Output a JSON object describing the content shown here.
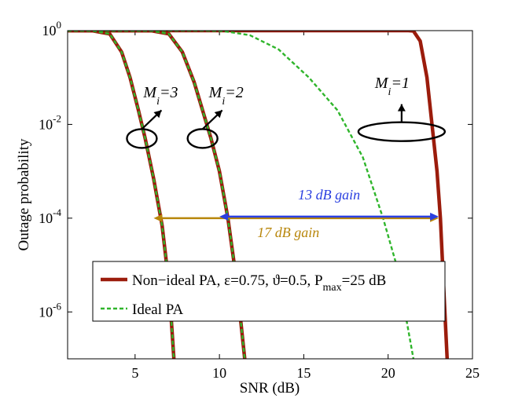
{
  "chart_data": {
    "type": "line",
    "title": "",
    "xlabel": "SNR (dB)",
    "ylabel": "Outage probability",
    "xlim": [
      1,
      25
    ],
    "ylim": [
      1e-07,
      1
    ],
    "yscale": "log",
    "xticks": [
      5,
      10,
      15,
      20,
      25
    ],
    "yticks": [
      {
        "base": "10",
        "exp": "0",
        "value": 1
      },
      {
        "base": "10",
        "exp": "-2",
        "value": 0.01
      },
      {
        "base": "10",
        "exp": "-4",
        "value": 0.0001
      },
      {
        "base": "10",
        "exp": "-6",
        "value": 1e-06
      }
    ],
    "colors": {
      "nonideal": "#9b1c0c",
      "ideal": "#2fb52b",
      "gain13": "#2a3fe0",
      "gain17": "#b8860b"
    },
    "series": [
      {
        "name": "Non-ideal PA, Mi=3",
        "group": "nonideal",
        "x": [
          1,
          2.5,
          3.5,
          4.2,
          4.7,
          5.2,
          5.6,
          6.1,
          6.6,
          7.0,
          7.3
        ],
        "y": [
          1,
          0.99,
          0.85,
          0.35,
          0.1,
          0.02,
          0.005,
          0.0007,
          7e-05,
          4e-06,
          1e-07
        ]
      },
      {
        "name": "Non-ideal PA, Mi=2",
        "group": "nonideal",
        "x": [
          1,
          6.0,
          7.0,
          7.8,
          8.5,
          9.0,
          9.5,
          10.0,
          10.5,
          11.0,
          11.5
        ],
        "y": [
          1,
          0.99,
          0.85,
          0.35,
          0.08,
          0.02,
          0.005,
          0.001,
          0.0001,
          5e-06,
          1e-07
        ]
      },
      {
        "name": "Non-ideal PA, Mi=1",
        "group": "nonideal",
        "x": [
          1,
          21.2,
          21.5,
          21.9,
          22.3,
          22.6,
          22.9,
          23.1,
          23.3,
          23.5
        ],
        "y": [
          1,
          1,
          0.98,
          0.6,
          0.1,
          0.01,
          0.001,
          0.0001,
          3e-06,
          1e-07
        ]
      },
      {
        "name": "Ideal PA, Mi=3",
        "group": "ideal",
        "x": [
          1,
          2.5,
          3.5,
          4.2,
          4.7,
          5.2,
          5.6,
          6.1,
          6.6,
          7.0,
          7.3
        ],
        "y": [
          1,
          0.99,
          0.85,
          0.35,
          0.1,
          0.02,
          0.005,
          0.0007,
          7e-05,
          4e-06,
          1e-07
        ]
      },
      {
        "name": "Ideal PA, Mi=2",
        "group": "ideal",
        "x": [
          1,
          6.0,
          7.0,
          7.8,
          8.5,
          9.0,
          9.5,
          10.0,
          10.5,
          11.0,
          11.5
        ],
        "y": [
          1,
          0.99,
          0.85,
          0.35,
          0.08,
          0.02,
          0.005,
          0.001,
          0.0001,
          5e-06,
          1e-07
        ]
      },
      {
        "name": "Ideal PA, Mi=1",
        "group": "ideal",
        "x": [
          1,
          9.0,
          10.2,
          11.8,
          13.5,
          15.3,
          17.0,
          18.5,
          19.7,
          20.5,
          21.0,
          21.5
        ],
        "y": [
          1,
          1,
          0.98,
          0.8,
          0.4,
          0.1,
          0.02,
          0.002,
          0.0001,
          1e-05,
          1e-06,
          1e-07
        ]
      }
    ],
    "annotations": [
      {
        "id": "mi3",
        "base": "M",
        "sub": "i",
        "rest": "=3",
        "ellipse_x": 5.4,
        "ellipse_y": 0.005
      },
      {
        "id": "mi2",
        "base": "M",
        "sub": "i",
        "rest": "=2",
        "ellipse_x": 9.0,
        "ellipse_y": 0.005
      },
      {
        "id": "mi1",
        "base": "M",
        "sub": "i",
        "rest": "=1",
        "ellipse_x": 20.8,
        "ellipse_y": 0.007
      }
    ],
    "gains": [
      {
        "id": "gain13",
        "label": "13 dB gain",
        "from": 10.0,
        "to": 23.0,
        "y": 0.0001
      },
      {
        "id": "gain17",
        "label": "17 dB gain",
        "from": 6.1,
        "to": 23.0,
        "y": 0.0001
      }
    ],
    "legend": {
      "position": "lower-right",
      "entries": [
        {
          "group": "nonideal",
          "label": "Non−ideal PA, ε=0.75, ϑ=0.5, P",
          "sub": "max",
          "tail": "=25 dB"
        },
        {
          "group": "ideal",
          "label": "Ideal PA",
          "sub": "",
          "tail": ""
        }
      ]
    }
  }
}
